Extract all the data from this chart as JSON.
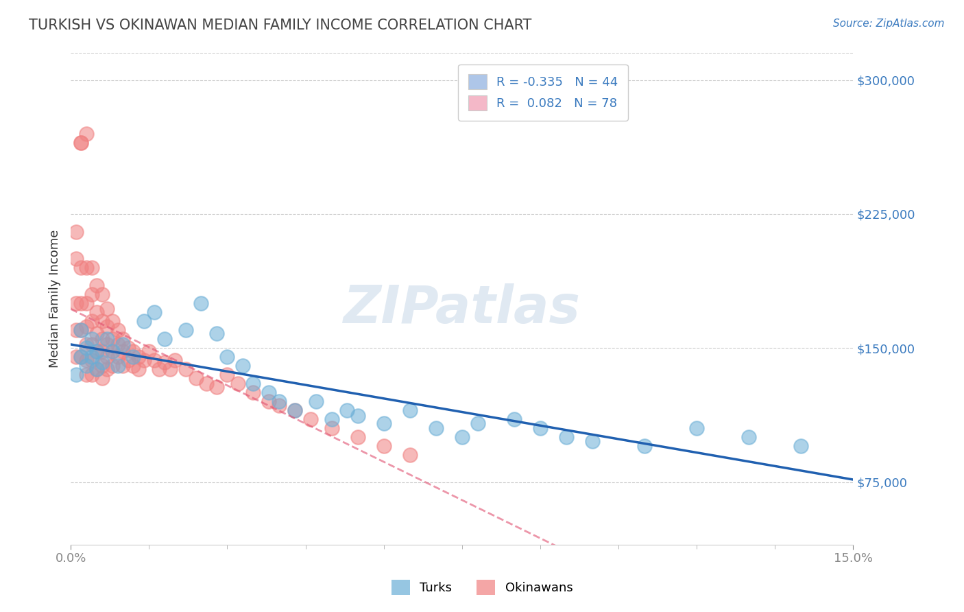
{
  "title": "TURKISH VS OKINAWAN MEDIAN FAMILY INCOME CORRELATION CHART",
  "source": "Source: ZipAtlas.com",
  "ylabel": "Median Family Income",
  "ytick_labels": [
    "$75,000",
    "$150,000",
    "$225,000",
    "$300,000"
  ],
  "ytick_values": [
    75000,
    150000,
    225000,
    300000
  ],
  "xlim": [
    0.0,
    0.15
  ],
  "ylim": [
    40000,
    315000
  ],
  "legend_entries": [
    {
      "label": "R = -0.335   N = 44",
      "color": "#aec6e8"
    },
    {
      "label": "R =  0.082   N = 78",
      "color": "#f4b8c8"
    }
  ],
  "turks_scatter_color": "#6aaed6",
  "okinawans_scatter_color": "#f08080",
  "turks_line_color": "#2060b0",
  "okinawans_line_color": "#e05070",
  "background_color": "#ffffff",
  "watermark": "ZIPatlas",
  "turks_x": [
    0.001,
    0.002,
    0.002,
    0.003,
    0.003,
    0.004,
    0.004,
    0.005,
    0.005,
    0.006,
    0.007,
    0.008,
    0.009,
    0.01,
    0.012,
    0.014,
    0.016,
    0.018,
    0.022,
    0.025,
    0.028,
    0.03,
    0.033,
    0.035,
    0.038,
    0.04,
    0.043,
    0.047,
    0.05,
    0.053,
    0.055,
    0.06,
    0.065,
    0.07,
    0.075,
    0.078,
    0.085,
    0.09,
    0.095,
    0.1,
    0.11,
    0.12,
    0.13,
    0.14
  ],
  "turks_y": [
    135000,
    145000,
    160000,
    140000,
    150000,
    155000,
    145000,
    148000,
    138000,
    142000,
    155000,
    148000,
    140000,
    152000,
    145000,
    165000,
    170000,
    155000,
    160000,
    175000,
    158000,
    145000,
    140000,
    130000,
    125000,
    120000,
    115000,
    120000,
    110000,
    115000,
    112000,
    108000,
    115000,
    105000,
    100000,
    108000,
    110000,
    105000,
    100000,
    98000,
    95000,
    105000,
    100000,
    95000
  ],
  "okinawans_x": [
    0.001,
    0.001,
    0.001,
    0.001,
    0.001,
    0.002,
    0.002,
    0.002,
    0.002,
    0.002,
    0.002,
    0.003,
    0.003,
    0.003,
    0.003,
    0.003,
    0.003,
    0.003,
    0.004,
    0.004,
    0.004,
    0.004,
    0.004,
    0.004,
    0.005,
    0.005,
    0.005,
    0.005,
    0.005,
    0.006,
    0.006,
    0.006,
    0.006,
    0.006,
    0.006,
    0.007,
    0.007,
    0.007,
    0.007,
    0.007,
    0.008,
    0.008,
    0.008,
    0.008,
    0.009,
    0.009,
    0.009,
    0.01,
    0.01,
    0.01,
    0.011,
    0.011,
    0.012,
    0.012,
    0.013,
    0.013,
    0.014,
    0.015,
    0.016,
    0.017,
    0.018,
    0.019,
    0.02,
    0.022,
    0.024,
    0.026,
    0.028,
    0.03,
    0.032,
    0.035,
    0.038,
    0.04,
    0.043,
    0.046,
    0.05,
    0.055,
    0.06,
    0.065
  ],
  "okinawans_y": [
    215000,
    200000,
    175000,
    160000,
    145000,
    265000,
    265000,
    195000,
    175000,
    160000,
    145000,
    270000,
    195000,
    175000,
    162000,
    152000,
    143000,
    135000,
    195000,
    180000,
    165000,
    152000,
    143000,
    135000,
    185000,
    170000,
    158000,
    148000,
    138000,
    180000,
    165000,
    155000,
    148000,
    140000,
    133000,
    172000,
    162000,
    152000,
    145000,
    138000,
    165000,
    155000,
    148000,
    140000,
    160000,
    152000,
    145000,
    155000,
    148000,
    140000,
    150000,
    143000,
    148000,
    140000,
    145000,
    138000,
    143000,
    148000,
    143000,
    138000,
    142000,
    138000,
    143000,
    138000,
    133000,
    130000,
    128000,
    135000,
    130000,
    125000,
    120000,
    118000,
    115000,
    110000,
    105000,
    100000,
    95000,
    90000
  ]
}
